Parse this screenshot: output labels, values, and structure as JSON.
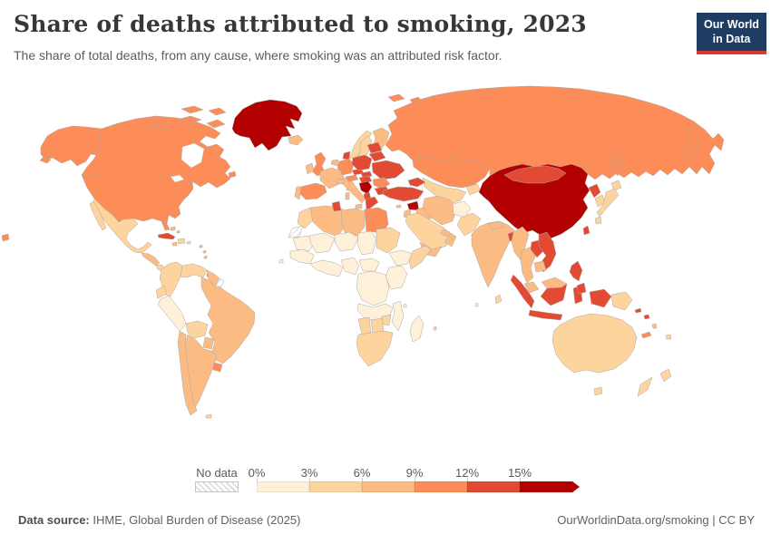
{
  "header": {
    "title": "Share of deaths attributed to smoking, 2023",
    "subtitle": "The share of total deaths, from any cause, where smoking was an attributed risk factor.",
    "logo": {
      "line1": "Our World",
      "line2": "in Data",
      "bg_color": "#1d3d63",
      "accent_color": "#d93a34"
    }
  },
  "footer": {
    "source_label": "Data source:",
    "source_text": " IHME, Global Burden of Disease (2025)",
    "link_text": "OurWorldinData.org/smoking | CC BY"
  },
  "chart_data": {
    "type": "choropleth",
    "title": "Share of deaths attributed to smoking, 2023",
    "unit": "% of total deaths",
    "year": "2023",
    "legend": {
      "no_data_label": "No data",
      "no_data_pattern": "hatched",
      "tick_labels": [
        "0%",
        "3%",
        "6%",
        "9%",
        "12%",
        "15%"
      ],
      "bins": [
        {
          "range": "0-3%",
          "color": "#fef0d9"
        },
        {
          "range": "3-6%",
          "color": "#fdd49e"
        },
        {
          "range": "6-9%",
          "color": "#fdbb84"
        },
        {
          "range": "9-12%",
          "color": "#fc8d59"
        },
        {
          "range": "12-15%",
          "color": "#e34a33"
        },
        {
          "range": "15%+",
          "color": "#b30000"
        }
      ]
    },
    "regions": {
      "usa": {
        "name": "United States",
        "bin": 3
      },
      "canada": {
        "name": "Canada",
        "bin": 3
      },
      "greenland": {
        "name": "Greenland",
        "bin": 5
      },
      "iceland": {
        "name": "Iceland",
        "bin": 2
      },
      "mexico": {
        "name": "Mexico",
        "bin": 1
      },
      "guatemala-honduras": {
        "name": "Guatemala / Honduras",
        "bin": 2
      },
      "nicaragua-panama": {
        "name": "Nicaragua / Costa Rica / Panama",
        "bin": 1
      },
      "cuba": {
        "name": "Cuba",
        "bin": 4
      },
      "bahamas": {
        "name": "Bahamas",
        "bin": 2
      },
      "hispaniola": {
        "name": "Haiti / Dominican Republic",
        "bin": 1
      },
      "jamaica": {
        "name": "Jamaica",
        "bin": 2
      },
      "puerto-rico": {
        "name": "Puerto Rico",
        "bin": 1
      },
      "lesser-antilles": {
        "name": "Lesser Antilles",
        "bin": 2
      },
      "trinidad": {
        "name": "Trinidad and Tobago",
        "bin": 3
      },
      "colombia": {
        "name": "Colombia",
        "bin": 1
      },
      "venezuela": {
        "name": "Venezuela",
        "bin": 1
      },
      "guyanas": {
        "name": "Guyana / Suriname",
        "bin": 2
      },
      "french-guiana": {
        "name": "French Guiana",
        "bin": "no_data"
      },
      "ecuador": {
        "name": "Ecuador",
        "bin": 1
      },
      "peru": {
        "name": "Peru",
        "bin": 0
      },
      "brazil": {
        "name": "Brazil",
        "bin": 2
      },
      "bolivia": {
        "name": "Bolivia",
        "bin": 1
      },
      "paraguay": {
        "name": "Paraguay",
        "bin": 2
      },
      "chile": {
        "name": "Chile",
        "bin": 2
      },
      "argentina": {
        "name": "Argentina",
        "bin": 2
      },
      "uruguay": {
        "name": "Uruguay",
        "bin": 3
      },
      "falkland": {
        "name": "Falkland Islands",
        "bin": 1
      },
      "cape-verde": {
        "name": "Cape Verde",
        "bin": 0
      },
      "norway": {
        "name": "Norway",
        "bin": 1
      },
      "sweden": {
        "name": "Sweden",
        "bin": 1
      },
      "finland": {
        "name": "Finland",
        "bin": 2
      },
      "denmark": {
        "name": "Denmark",
        "bin": 4
      },
      "uk": {
        "name": "United Kingdom",
        "bin": 3
      },
      "ireland": {
        "name": "Ireland",
        "bin": 2
      },
      "france": {
        "name": "France",
        "bin": 2
      },
      "benelux": {
        "name": "Belgium / Netherlands",
        "bin": 2
      },
      "germany": {
        "name": "Germany",
        "bin": 3
      },
      "poland": {
        "name": "Poland",
        "bin": 4
      },
      "baltics": {
        "name": "Baltic states",
        "bin": 4
      },
      "belarus": {
        "name": "Belarus",
        "bin": 4
      },
      "ukraine": {
        "name": "Ukraine",
        "bin": 4
      },
      "czech": {
        "name": "Czechia",
        "bin": 4
      },
      "slovakia": {
        "name": "Slovakia",
        "bin": 4
      },
      "austria": {
        "name": "Austria",
        "bin": 3
      },
      "switzerland": {
        "name": "Switzerland",
        "bin": 2
      },
      "hungary": {
        "name": "Hungary",
        "bin": 4
      },
      "romania": {
        "name": "Romania",
        "bin": 3
      },
      "bulgaria": {
        "name": "Bulgaria",
        "bin": 4
      },
      "balkans": {
        "name": "Serbia / Bosnia / Croatia",
        "bin": 5
      },
      "albania": {
        "name": "Albania / North Macedonia",
        "bin": 4
      },
      "greece": {
        "name": "Greece",
        "bin": 4
      },
      "italy": {
        "name": "Italy",
        "bin": 2
      },
      "spain": {
        "name": "Spain",
        "bin": 3
      },
      "portugal": {
        "name": "Portugal",
        "bin": 2
      },
      "svalbard": {
        "name": "Svalbard",
        "bin": 3
      },
      "russia": {
        "name": "Russia",
        "bin": 3
      },
      "kazakhstan": {
        "name": "Kazakhstan",
        "bin": 3
      },
      "uzbek-turkmen": {
        "name": "Uzbekistan / Turkmenistan",
        "bin": 1
      },
      "kyrgyz-tajik": {
        "name": "Kyrgyzstan / Tajikistan",
        "bin": 1
      },
      "caucasus": {
        "name": "Georgia / Armenia / Azerbaijan",
        "bin": 4
      },
      "turkey": {
        "name": "Turkey",
        "bin": 4
      },
      "cyprus": {
        "name": "Cyprus",
        "bin": 2
      },
      "syria": {
        "name": "Syria",
        "bin": 5
      },
      "iraq": {
        "name": "Iraq",
        "bin": 2
      },
      "jordan-israel": {
        "name": "Jordan / Israel",
        "bin": 2
      },
      "saudi-arabia": {
        "name": "Saudi Arabia",
        "bin": 1
      },
      "yemen": {
        "name": "Yemen",
        "bin": 2
      },
      "oman": {
        "name": "Oman",
        "bin": 2
      },
      "uae-qatar": {
        "name": "UAE / Qatar",
        "bin": 2
      },
      "iran": {
        "name": "Iran",
        "bin": 2
      },
      "afghanistan": {
        "name": "Afghanistan",
        "bin": 0
      },
      "pakistan": {
        "name": "Pakistan",
        "bin": 1
      },
      "india": {
        "name": "India",
        "bin": 2
      },
      "nepal": {
        "name": "Nepal",
        "bin": 2
      },
      "bangladesh": {
        "name": "Bangladesh",
        "bin": 4
      },
      "sri-lanka": {
        "name": "Sri Lanka",
        "bin": 1
      },
      "myanmar": {
        "name": "Myanmar",
        "bin": 2
      },
      "thailand": {
        "name": "Thailand",
        "bin": 2
      },
      "laos": {
        "name": "Laos",
        "bin": 4
      },
      "vietnam": {
        "name": "Vietnam",
        "bin": 4
      },
      "cambodia": {
        "name": "Cambodia",
        "bin": 2
      },
      "malaysia": {
        "name": "Malaysia",
        "bin": 2
      },
      "indonesia": {
        "name": "Indonesia",
        "bin": 4
      },
      "timor": {
        "name": "Timor-Leste",
        "bin": 1
      },
      "png": {
        "name": "Papua New Guinea",
        "bin": 1
      },
      "philippines": {
        "name": "Philippines",
        "bin": 4
      },
      "china": {
        "name": "China",
        "bin": 5
      },
      "mongolia": {
        "name": "Mongolia",
        "bin": 4
      },
      "north-korea": {
        "name": "North Korea",
        "bin": 4
      },
      "south-korea": {
        "name": "South Korea",
        "bin": 1
      },
      "japan": {
        "name": "Japan",
        "bin": 1
      },
      "taiwan": {
        "name": "Taiwan",
        "bin": 4
      },
      "maldives": {
        "name": "Maldives",
        "bin": 0
      },
      "morocco": {
        "name": "Morocco",
        "bin": 1
      },
      "western-sahara": {
        "name": "Western Sahara",
        "bin": "no_data"
      },
      "algeria": {
        "name": "Algeria",
        "bin": 2
      },
      "tunisia": {
        "name": "Tunisia",
        "bin": 4
      },
      "libya": {
        "name": "Libya",
        "bin": 2
      },
      "egypt": {
        "name": "Egypt",
        "bin": 3
      },
      "mauritania": {
        "name": "Mauritania",
        "bin": 0
      },
      "mali": {
        "name": "Mali",
        "bin": 0
      },
      "niger": {
        "name": "Niger",
        "bin": 0
      },
      "chad": {
        "name": "Chad",
        "bin": 0
      },
      "sudan": {
        "name": "Sudan",
        "bin": 1
      },
      "senegal-guinea": {
        "name": "Senegal / Guinea",
        "bin": 0
      },
      "gulf-of-guinea": {
        "name": "Côte d'Ivoire / Ghana",
        "bin": 0
      },
      "nigeria": {
        "name": "Nigeria",
        "bin": 0
      },
      "cameroon-car": {
        "name": "Cameroon / CAR",
        "bin": 0
      },
      "ethiopia": {
        "name": "Ethiopia",
        "bin": 0
      },
      "somalia": {
        "name": "Somalia",
        "bin": 1
      },
      "kenya-tanzania": {
        "name": "Kenya / Tanzania",
        "bin": 0
      },
      "drc": {
        "name": "DR Congo",
        "bin": 0
      },
      "angola-zambia": {
        "name": "Angola / Zambia",
        "bin": 0
      },
      "mozambique": {
        "name": "Mozambique",
        "bin": 0
      },
      "zimbabwe": {
        "name": "Zimbabwe",
        "bin": 1
      },
      "namibia": {
        "name": "Namibia",
        "bin": 1
      },
      "botswana": {
        "name": "Botswana",
        "bin": 1
      },
      "south-africa": {
        "name": "South Africa",
        "bin": 1
      },
      "madagascar": {
        "name": "Madagascar",
        "bin": 0
      },
      "comoros": {
        "name": "Comoros",
        "bin": 0
      },
      "mauritius": {
        "name": "Mauritius",
        "bin": 1
      },
      "australia": {
        "name": "Australia",
        "bin": 1
      },
      "tasmania": {
        "name": "Tasmania",
        "bin": 1
      },
      "new-zealand": {
        "name": "New Zealand",
        "bin": 1
      },
      "new-caledonia": {
        "name": "New Caledonia",
        "bin": 3
      },
      "fiji": {
        "name": "Fiji",
        "bin": 1
      },
      "vanuatu": {
        "name": "Vanuatu",
        "bin": 2
      },
      "solomon": {
        "name": "Solomon Islands",
        "bin": 4
      }
    }
  }
}
